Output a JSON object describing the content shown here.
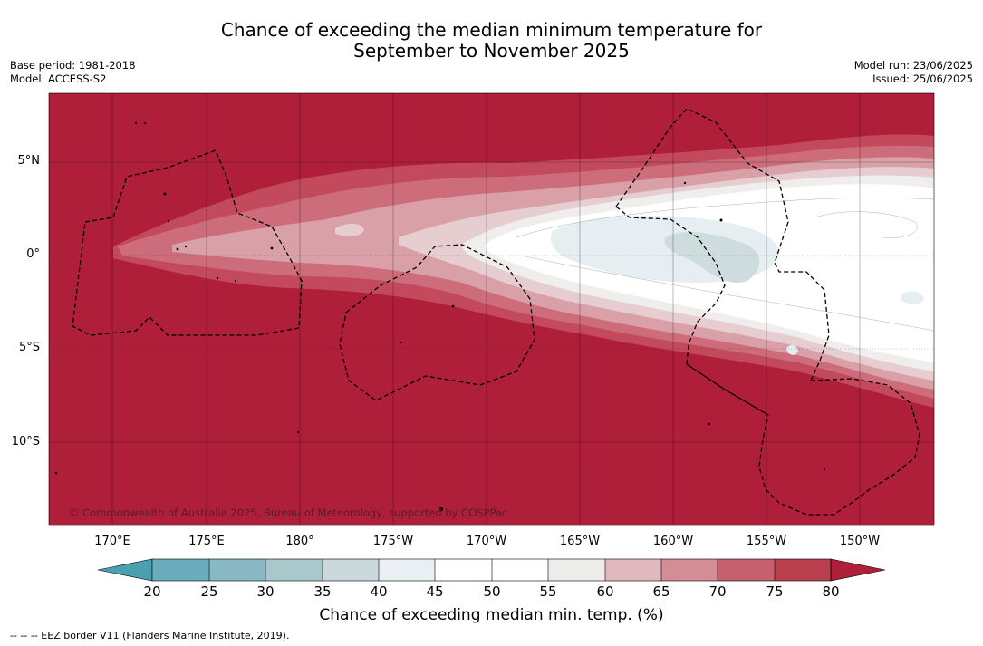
{
  "title": {
    "line1": "Chance of exceeding the median minimum temperature for",
    "line2": "September to November 2025"
  },
  "meta_left": {
    "base_period": "Base period: 1981-2018",
    "model": "Model: ACCESS-S2"
  },
  "meta_right": {
    "model_run": "Model run: 23/06/2025",
    "issued": "Issued: 25/06/2025"
  },
  "credit": "© Commonwealth of Australia 2025, Bureau of Meteorology, supported by COSPPac",
  "lat_labels": [
    "5°N",
    "0°",
    "5°S",
    "10°S"
  ],
  "lon_labels": [
    "170°E",
    "175°E",
    "180°",
    "175°W",
    "170°W",
    "165°W",
    "160°W",
    "155°W",
    "150°W"
  ],
  "colorbar": {
    "ticks": [
      "20",
      "25",
      "30",
      "35",
      "40",
      "45",
      "50",
      "55",
      "60",
      "65",
      "70",
      "75",
      "80"
    ],
    "colors": [
      "#4a9fb0",
      "#6aaebd",
      "#88b8c4",
      "#a8c8cc",
      "#ccd9dc",
      "#e9eff2",
      "#ffffff",
      "#ffffff",
      "#ececeb",
      "#e0b8be",
      "#d38d96",
      "#c7606e",
      "#b9404f",
      "#b01f3a"
    ],
    "label": "Chance of exceeding median min. temp. (%)"
  },
  "colors": {
    "high": "#b01f3a",
    "c75": "#c34a5c",
    "c70": "#cd6d7b",
    "c65": "#d9a0a8",
    "c60": "#e6cdd0",
    "c55": "#efeeed",
    "c50": "#ffffff",
    "c40": "#e6eef1",
    "c35": "#cfdcde"
  },
  "footer": "--  --  -- EEZ border V11 (Flanders Marine Institute, 2019)."
}
